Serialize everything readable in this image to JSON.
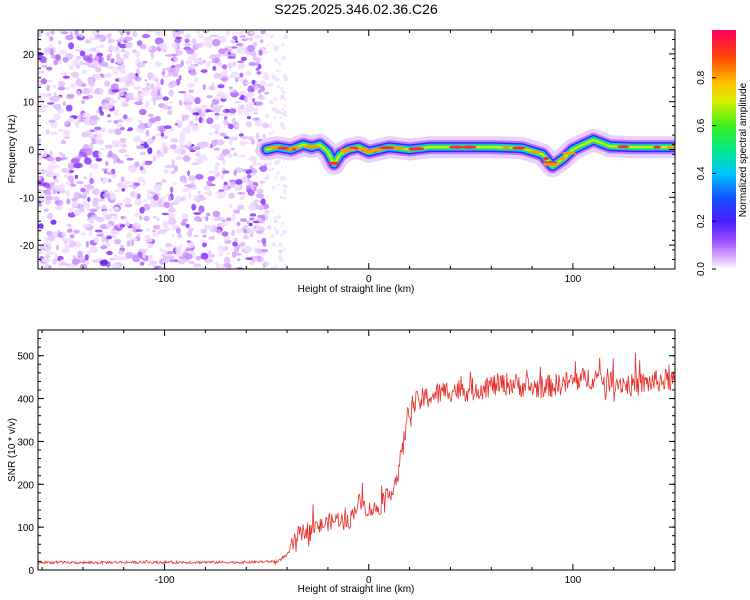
{
  "title": "S225.2025.346.02.36.C26",
  "chart_data": [
    {
      "type": "heatmap",
      "xlabel": "Height of straight line (km)",
      "ylabel": "Frequency (Hz)",
      "xlim": [
        -162,
        150
      ],
      "ylim": [
        -25,
        25
      ],
      "xticks": [
        -100,
        0,
        100
      ],
      "yticks": [
        -20,
        -10,
        0,
        10,
        20
      ],
      "noise_region_x": [
        -162,
        -50
      ],
      "ridge": [
        [
          -50,
          0
        ],
        [
          -45,
          0.5
        ],
        [
          -38,
          0
        ],
        [
          -32,
          1
        ],
        [
          -28,
          0.5
        ],
        [
          -24,
          1
        ],
        [
          -20,
          -0.5
        ],
        [
          -17,
          -3
        ],
        [
          -14,
          -1
        ],
        [
          -10,
          0
        ],
        [
          -5,
          0.5
        ],
        [
          0,
          -0.5
        ],
        [
          5,
          0
        ],
        [
          10,
          0.5
        ],
        [
          20,
          0
        ],
        [
          30,
          0.5
        ],
        [
          40,
          0.5
        ],
        [
          60,
          0.5
        ],
        [
          75,
          0.3
        ],
        [
          85,
          -1
        ],
        [
          90,
          -3.5
        ],
        [
          95,
          -2
        ],
        [
          100,
          0
        ],
        [
          105,
          1
        ],
        [
          110,
          2
        ],
        [
          118,
          0.7
        ],
        [
          130,
          0.5
        ],
        [
          150,
          0.5
        ]
      ],
      "colorbar": {
        "label": "Normalized spectral amplitude",
        "range": [
          0,
          1
        ],
        "ticks": [
          0.0,
          0.2,
          0.4,
          0.6,
          0.8
        ]
      }
    },
    {
      "type": "line",
      "xlabel": "Height of straight line (km)",
      "ylabel": "SNR (10 * v/v)",
      "xlim": [
        -162,
        150
      ],
      "ylim": [
        0,
        560
      ],
      "xticks": [
        -100,
        0,
        100
      ],
      "yticks": [
        0,
        100,
        200,
        300,
        400,
        500
      ],
      "color": "#e8322e",
      "series": [
        {
          "name": "SNR",
          "x": [
            -162,
            -140,
            -120,
            -100,
            -80,
            -60,
            -45,
            -40,
            -35,
            -30,
            -25,
            -20,
            -15,
            -10,
            -5,
            0,
            5,
            10,
            13,
            16,
            18,
            20,
            25,
            30,
            40,
            50,
            60,
            70,
            80,
            90,
            100,
            110,
            120,
            130,
            140,
            150
          ],
          "y": [
            18,
            17,
            18,
            18,
            18,
            18,
            20,
            35,
            80,
            95,
            100,
            110,
            120,
            110,
            160,
            140,
            145,
            175,
            205,
            260,
            330,
            380,
            395,
            405,
            420,
            420,
            430,
            435,
            425,
            430,
            440,
            450,
            440,
            430,
            440,
            445
          ]
        }
      ]
    }
  ]
}
